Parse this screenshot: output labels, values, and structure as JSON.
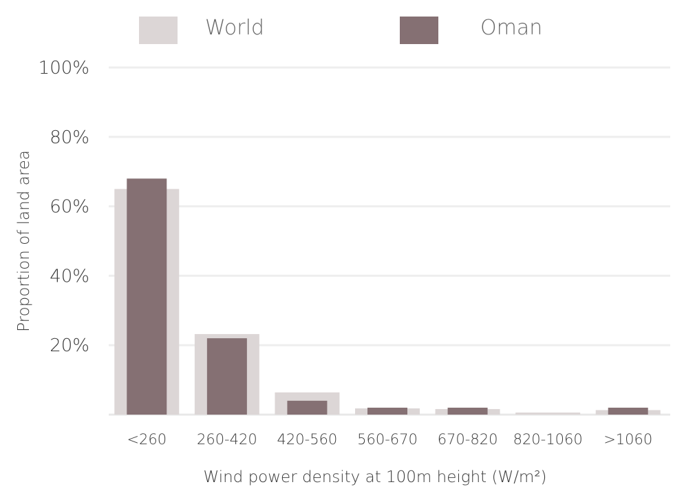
{
  "chart_data": {
    "type": "bar",
    "categories": [
      "<260",
      "260-420",
      "420-560",
      "560-670",
      "670-820",
      "820-1060",
      ">1060"
    ],
    "series": [
      {
        "name": "World",
        "values": [
          65,
          23.2,
          6.4,
          1.8,
          1.6,
          0.6,
          1.3
        ],
        "color": "#dcd6d6"
      },
      {
        "name": "Oman",
        "values": [
          68,
          22,
          4,
          2,
          2,
          0,
          2
        ],
        "color": "#857073"
      }
    ],
    "ylim": [
      0,
      100
    ],
    "yticks": [
      {
        "value": 20,
        "label": "20%"
      },
      {
        "value": 40,
        "label": "40%"
      },
      {
        "value": 60,
        "label": "60%"
      },
      {
        "value": 80,
        "label": "80%"
      },
      {
        "value": 100,
        "label": "100%"
      }
    ],
    "xlabel": "Wind power density at 100m height (W/m²)",
    "ylabel": "Proportion of land area",
    "grid": true,
    "legend_position": "top"
  }
}
